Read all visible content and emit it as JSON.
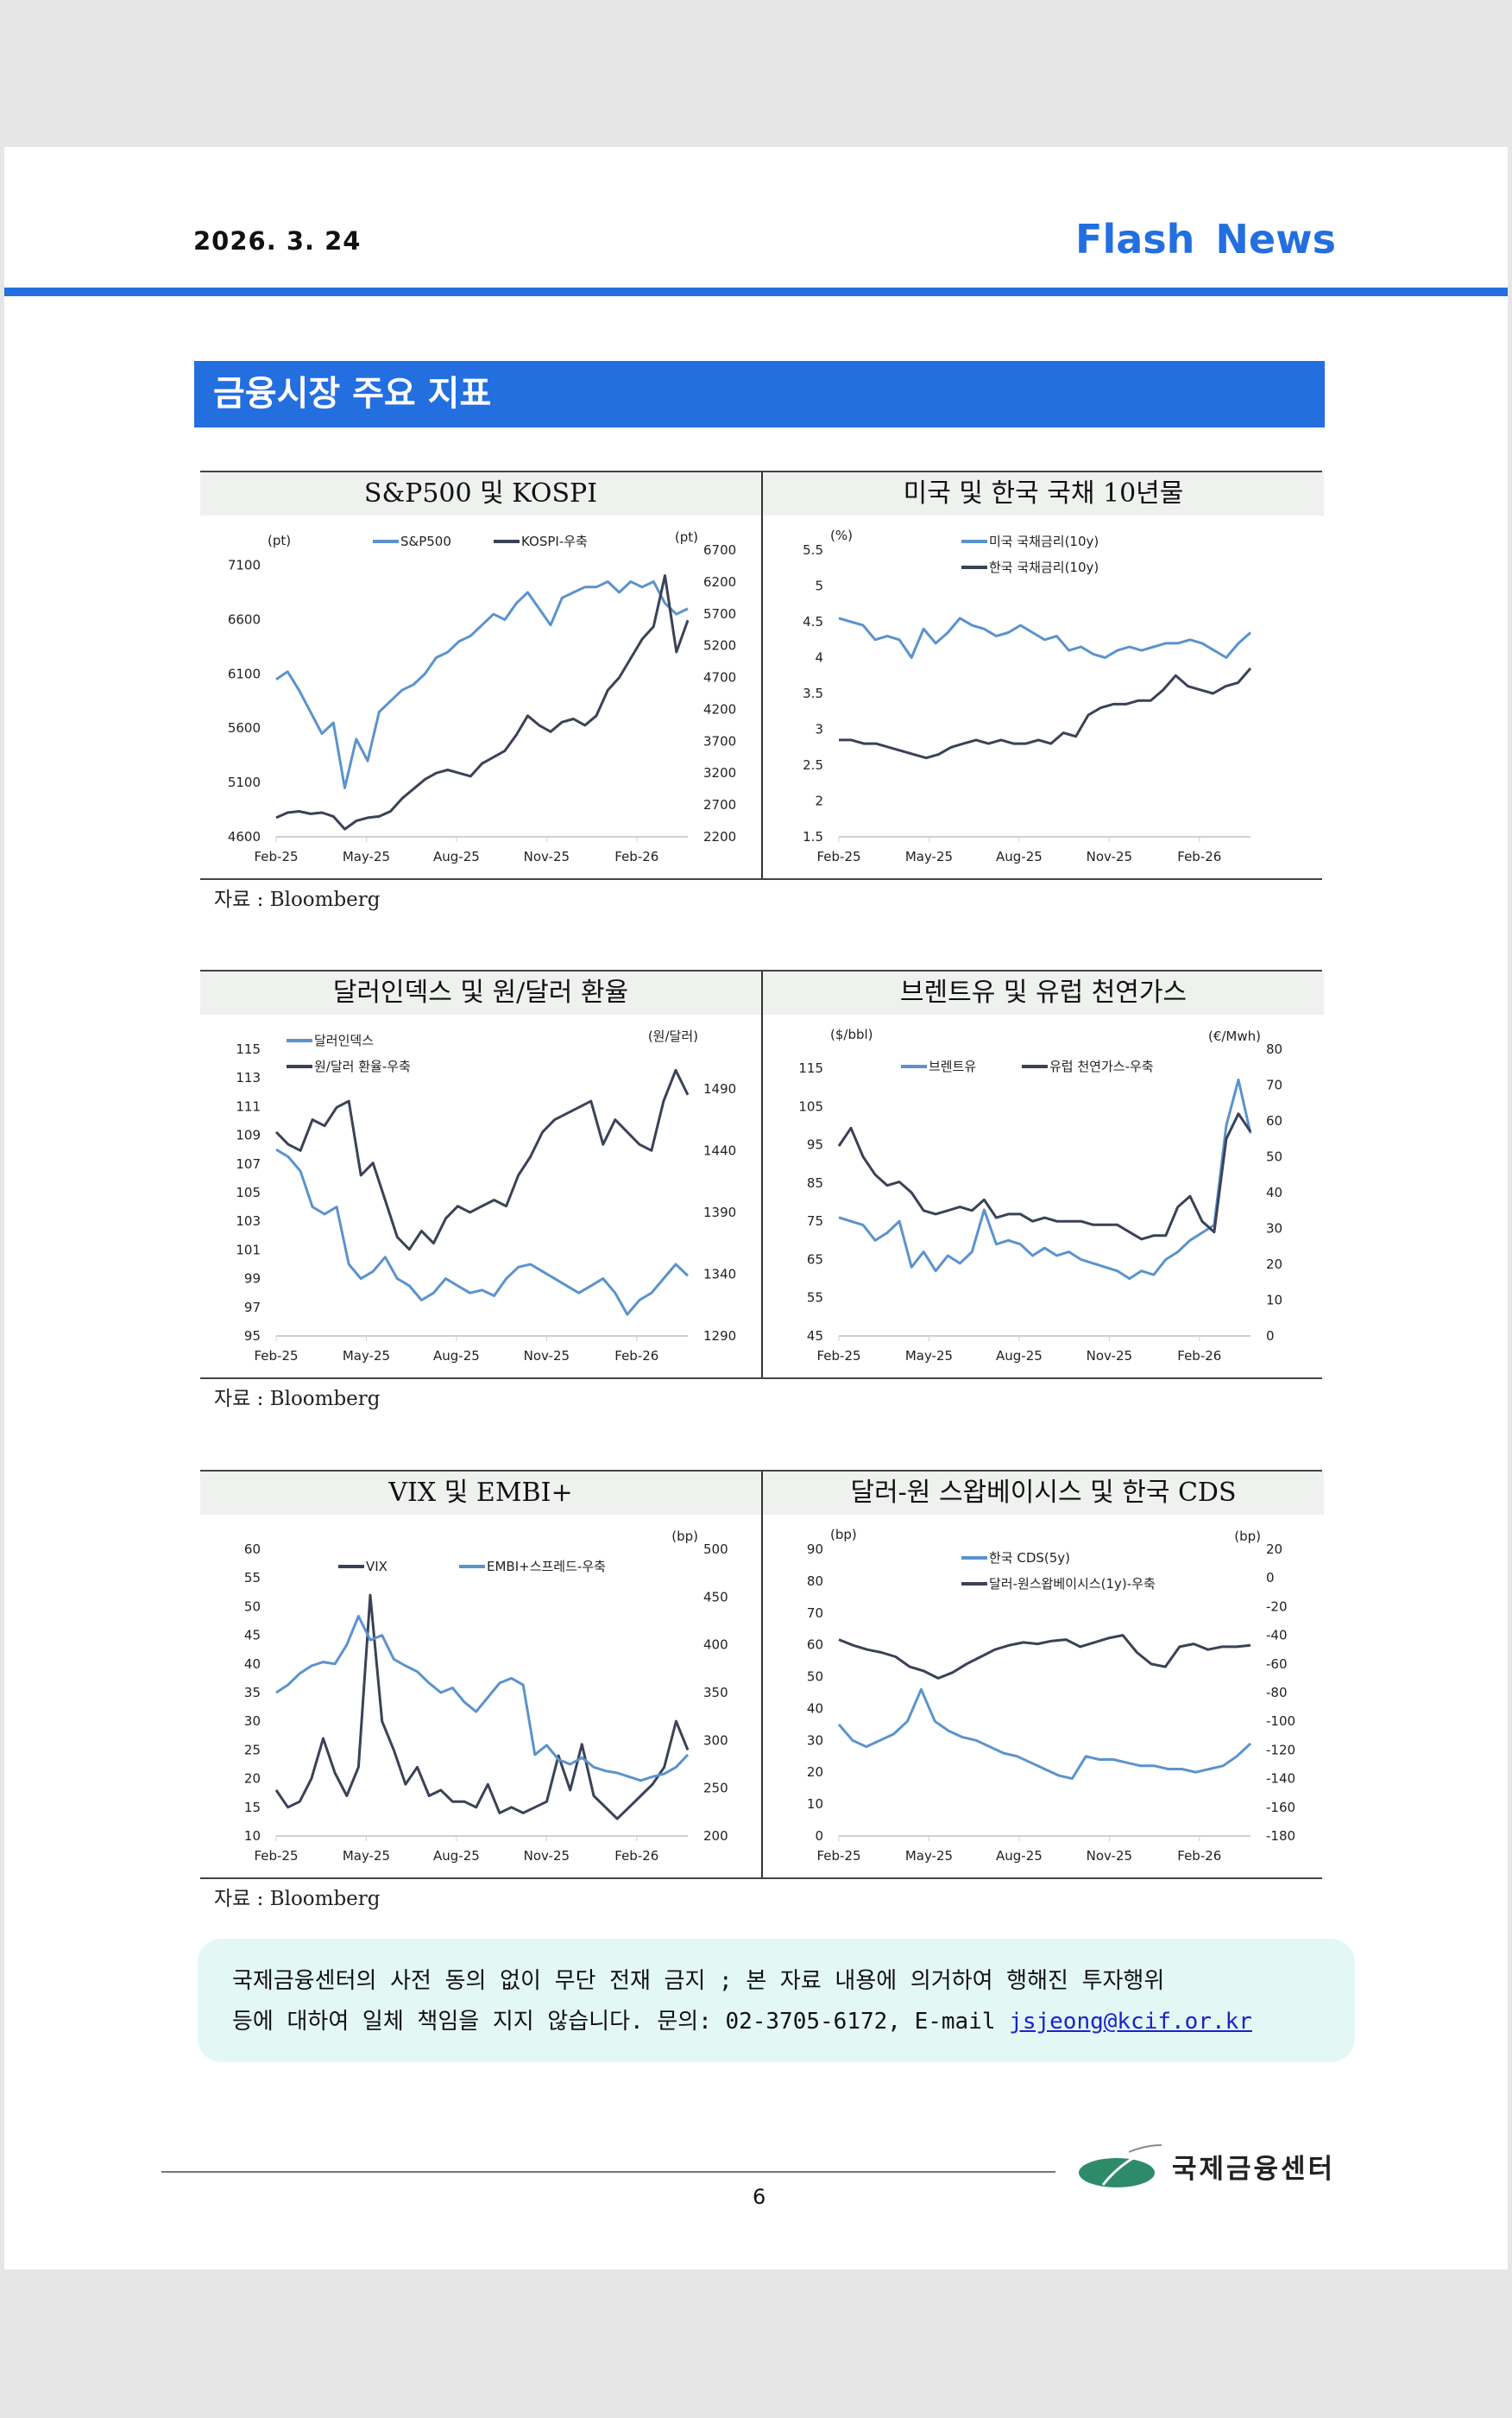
{
  "header": {
    "date": "2026. 3. 24",
    "brand": "Flash News"
  },
  "section_title": "금융시장 주요 지표",
  "source_label": "자료 : Bloomberg",
  "colors": {
    "accent": "#236fe0",
    "light_series": "#5b93cc",
    "dark_series": "#3a4256"
  },
  "chart_data": [
    {
      "type": "line",
      "title": "S&P500 및 KOSPI",
      "x_ticks": [
        "Feb-25",
        "May-25",
        "Aug-25",
        "Nov-25",
        "Feb-26"
      ],
      "left_axis": {
        "unit": "(pt)",
        "ticks": [
          4600,
          5100,
          5600,
          6100,
          6600,
          7100
        ],
        "range": [
          4600,
          7240
        ]
      },
      "right_axis": {
        "unit": "(pt)",
        "ticks": [
          2200,
          2700,
          3200,
          3700,
          4200,
          4700,
          5200,
          5700,
          6200,
          6700
        ],
        "range": [
          2200,
          6700
        ]
      },
      "series": [
        {
          "name": "S&P500",
          "axis": "left",
          "color": "#5b93cc",
          "values": [
            6050,
            6120,
            5950,
            5750,
            5550,
            5650,
            5050,
            5500,
            5300,
            5750,
            5850,
            5950,
            6000,
            6100,
            6250,
            6300,
            6400,
            6450,
            6550,
            6650,
            6600,
            6750,
            6850,
            6700,
            6550,
            6800,
            6850,
            6900,
            6900,
            6950,
            6850,
            6950,
            6900,
            6950,
            6750,
            6650,
            6700
          ]
        },
        {
          "name": "KOSPI-우축",
          "axis": "right",
          "color": "#3a4256",
          "values": [
            2500,
            2580,
            2600,
            2560,
            2580,
            2520,
            2320,
            2450,
            2500,
            2520,
            2600,
            2800,
            2950,
            3100,
            3200,
            3250,
            3200,
            3150,
            3350,
            3450,
            3550,
            3800,
            4100,
            3950,
            3850,
            4000,
            4050,
            3950,
            4100,
            4500,
            4700,
            5000,
            5300,
            5500,
            6300,
            5100,
            5600
          ]
        }
      ]
    },
    {
      "type": "line",
      "title": "미국 및 한국 국채 10년물",
      "x_ticks": [
        "Feb-25",
        "May-25",
        "Aug-25",
        "Nov-25",
        "Feb-26"
      ],
      "left_axis": {
        "unit": "(%)",
        "ticks": [
          1.5,
          2.0,
          2.5,
          3.0,
          3.5,
          4.0,
          4.5,
          5.0,
          5.5
        ],
        "range": [
          1.5,
          5.5
        ]
      },
      "series": [
        {
          "name": "미국 국채금리(10y)",
          "axis": "left",
          "color": "#5b93cc",
          "values": [
            4.55,
            4.5,
            4.45,
            4.25,
            4.3,
            4.25,
            4.0,
            4.4,
            4.2,
            4.35,
            4.55,
            4.45,
            4.4,
            4.3,
            4.35,
            4.45,
            4.35,
            4.25,
            4.3,
            4.1,
            4.15,
            4.05,
            4.0,
            4.1,
            4.15,
            4.1,
            4.15,
            4.2,
            4.2,
            4.25,
            4.2,
            4.1,
            4.0,
            4.2,
            4.35
          ]
        },
        {
          "name": "한국 국채금리(10y)",
          "axis": "left",
          "color": "#3a4256",
          "values": [
            2.85,
            2.85,
            2.8,
            2.8,
            2.75,
            2.7,
            2.65,
            2.6,
            2.65,
            2.75,
            2.8,
            2.85,
            2.8,
            2.85,
            2.8,
            2.8,
            2.85,
            2.8,
            2.95,
            2.9,
            3.2,
            3.3,
            3.35,
            3.35,
            3.4,
            3.4,
            3.55,
            3.75,
            3.6,
            3.55,
            3.5,
            3.6,
            3.65,
            3.85
          ]
        }
      ]
    },
    {
      "type": "line",
      "title": "달러인덱스 및 원/달러 환율",
      "x_ticks": [
        "Feb-25",
        "May-25",
        "Aug-25",
        "Nov-25",
        "Feb-26"
      ],
      "left_axis": {
        "unit": "",
        "ticks": [
          95,
          97,
          99,
          101,
          103,
          105,
          107,
          109,
          111,
          113,
          115
        ],
        "range": [
          95,
          115
        ]
      },
      "right_axis": {
        "unit": "(원/달러)",
        "ticks": [
          1290,
          1340,
          1390,
          1440,
          1490
        ],
        "range": [
          1290,
          1522
        ]
      },
      "series": [
        {
          "name": "달러인덱스",
          "axis": "left",
          "color": "#5b93cc",
          "values": [
            108,
            107.5,
            106.5,
            104,
            103.5,
            104,
            100,
            99,
            99.5,
            100.5,
            99,
            98.5,
            97.5,
            98,
            99,
            98.5,
            98,
            98.2,
            97.8,
            99,
            99.8,
            100,
            99.5,
            99,
            98.5,
            98,
            98.5,
            99,
            98,
            96.5,
            97.5,
            98,
            99,
            100,
            99.2
          ]
        },
        {
          "name": "원/달러 환율-우축",
          "axis": "right",
          "color": "#3a4256",
          "values": [
            1455,
            1445,
            1440,
            1465,
            1460,
            1475,
            1480,
            1420,
            1430,
            1400,
            1370,
            1360,
            1375,
            1365,
            1385,
            1395,
            1390,
            1395,
            1400,
            1395,
            1420,
            1435,
            1455,
            1465,
            1470,
            1475,
            1480,
            1445,
            1465,
            1455,
            1445,
            1440,
            1480,
            1505,
            1485
          ]
        }
      ]
    },
    {
      "type": "line",
      "title": "브렌트유 및 유럽 천연가스",
      "x_ticks": [
        "Feb-25",
        "May-25",
        "Aug-25",
        "Nov-25",
        "Feb-26"
      ],
      "left_axis": {
        "unit": "($/bbl)",
        "ticks": [
          45,
          55,
          65,
          75,
          85,
          95,
          105,
          115
        ],
        "range": [
          45,
          120
        ]
      },
      "right_axis": {
        "unit": "(€/Mwh)",
        "ticks": [
          0,
          10,
          20,
          30,
          40,
          50,
          60,
          70,
          80
        ],
        "range": [
          0,
          80
        ]
      },
      "series": [
        {
          "name": "브렌트유",
          "axis": "left",
          "color": "#5b93cc",
          "values": [
            76,
            75,
            74,
            70,
            72,
            75,
            63,
            67,
            62,
            66,
            64,
            67,
            78,
            69,
            70,
            69,
            66,
            68,
            66,
            67,
            65,
            64,
            63,
            62,
            60,
            62,
            61,
            65,
            67,
            70,
            72,
            74,
            100,
            112,
            98
          ]
        },
        {
          "name": "유럽 천연가스-우축",
          "axis": "right",
          "color": "#3a4256",
          "values": [
            53,
            58,
            50,
            45,
            42,
            43,
            40,
            35,
            34,
            35,
            36,
            35,
            38,
            33,
            34,
            34,
            32,
            33,
            32,
            32,
            32,
            31,
            31,
            31,
            29,
            27,
            28,
            28,
            36,
            39,
            32,
            29,
            55,
            62,
            57
          ]
        }
      ]
    },
    {
      "type": "line",
      "title": "VIX 및 EMBI+",
      "x_ticks": [
        "Feb-25",
        "May-25",
        "Aug-25",
        "Nov-25",
        "Feb-26"
      ],
      "left_axis": {
        "unit": "",
        "ticks": [
          10,
          15,
          20,
          25,
          30,
          35,
          40,
          45,
          50,
          55,
          60
        ],
        "range": [
          10,
          60
        ]
      },
      "right_axis": {
        "unit": "(bp)",
        "ticks": [
          200,
          250,
          300,
          350,
          400,
          450,
          500
        ],
        "range": [
          200,
          500
        ]
      },
      "series": [
        {
          "name": "VIX",
          "axis": "left",
          "color": "#3a4256",
          "values": [
            18,
            15,
            16,
            20,
            27,
            21,
            17,
            22,
            52,
            30,
            25,
            19,
            22,
            17,
            18,
            16,
            16,
            15,
            19,
            14,
            15,
            14,
            15,
            16,
            24,
            18,
            26,
            17,
            15,
            13,
            15,
            17,
            19,
            22,
            30,
            25
          ]
        },
        {
          "name": "EMBI+스프레드-우축",
          "axis": "right",
          "color": "#5b93cc",
          "values": [
            350,
            358,
            370,
            378,
            382,
            380,
            400,
            430,
            405,
            410,
            385,
            378,
            372,
            360,
            350,
            355,
            340,
            330,
            345,
            360,
            365,
            358,
            285,
            295,
            280,
            275,
            282,
            272,
            268,
            266,
            262,
            258,
            262,
            265,
            272,
            285
          ]
        }
      ]
    },
    {
      "type": "line",
      "title": "달러-원 스왑베이시스 및 한국 CDS",
      "x_ticks": [
        "Feb-25",
        "May-25",
        "Aug-25",
        "Nov-25",
        "Feb-26"
      ],
      "left_axis": {
        "unit": "(bp)",
        "ticks": [
          0,
          10,
          20,
          30,
          40,
          50,
          60,
          70,
          80,
          90
        ],
        "range": [
          0,
          90
        ]
      },
      "right_axis": {
        "unit": "(bp)",
        "ticks": [
          -180,
          -160,
          -140,
          -120,
          -100,
          -80,
          -60,
          -40,
          -20,
          0,
          20
        ],
        "range": [
          -180,
          20
        ]
      },
      "series": [
        {
          "name": "한국 CDS(5y)",
          "axis": "left",
          "color": "#5b93cc",
          "values": [
            35,
            30,
            28,
            30,
            32,
            36,
            46,
            36,
            33,
            31,
            30,
            28,
            26,
            25,
            23,
            21,
            19,
            18,
            25,
            24,
            24,
            23,
            22,
            22,
            21,
            21,
            20,
            21,
            22,
            25,
            29
          ]
        },
        {
          "name": "달러-원스왑베이시스(1y)-우축",
          "axis": "right",
          "color": "#3a4256",
          "values": [
            -43,
            -47,
            -50,
            -52,
            -55,
            -62,
            -65,
            -70,
            -66,
            -60,
            -55,
            -50,
            -47,
            -45,
            -46,
            -44,
            -43,
            -48,
            -45,
            -42,
            -40,
            -52,
            -60,
            -62,
            -48,
            -46,
            -50,
            -48,
            -48,
            -47
          ]
        }
      ]
    }
  ],
  "disclaimer": {
    "line1": "국제금융센터의 사전 동의 없이 무단 전재 금지 ; 본 자료 내용에 의거하여 행해진 투자행위",
    "line2": "등에 대하여 일체 책임을 지지 않습니다. 문의: 02-3705-6172, E-mail ",
    "email": "jsjeong@kcif.or.kr"
  },
  "footer": {
    "org_name": "국제금융센터",
    "page_number": "6"
  }
}
